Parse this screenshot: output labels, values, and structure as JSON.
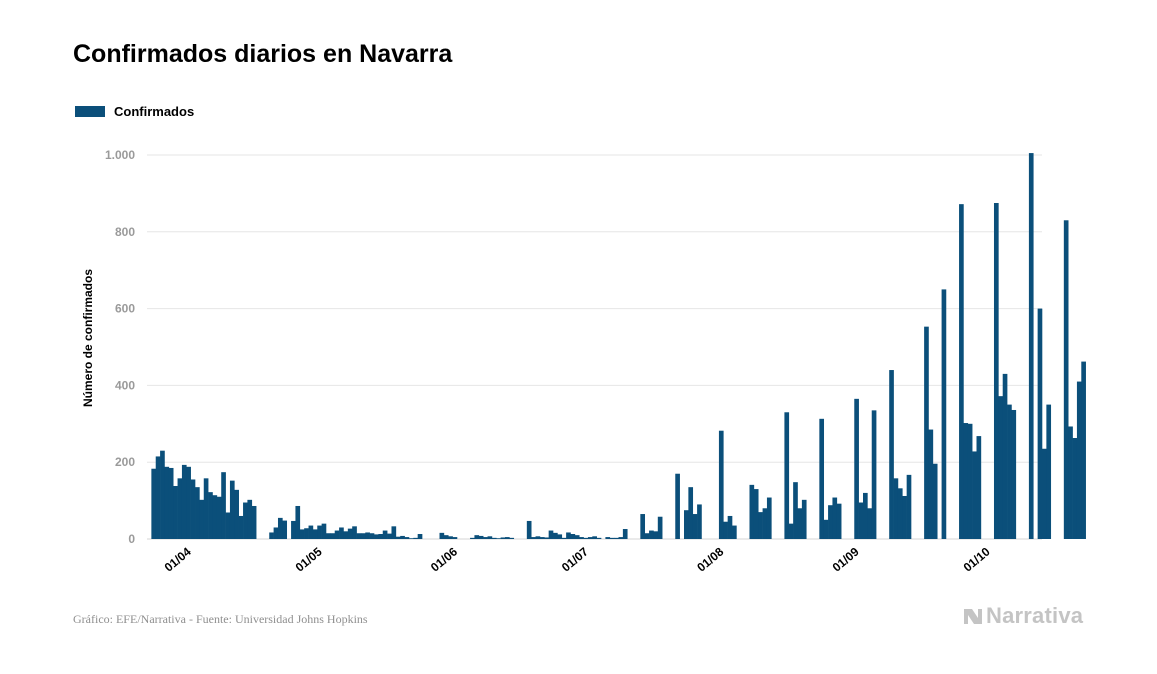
{
  "title": "Confirmados diarios en Navarra",
  "legend": {
    "label": "Confirmados",
    "color": "#0b4f7a"
  },
  "footer": {
    "source": "Gráfico: EFE/Narrativa - Fuente: Universidad Johns Hopkins",
    "brand": "Narrativa"
  },
  "colors": {
    "bar": "#0b4f7a",
    "grid": "#e6e6e6",
    "tick_label": "#9a9a9a",
    "brand": "#c4c4c4"
  },
  "chart_data": {
    "type": "bar",
    "ylabel": "Número de confirmados",
    "ylim": [
      0,
      1000
    ],
    "yticks": [
      0,
      200,
      400,
      600,
      800,
      1000
    ],
    "ytick_labels": [
      "0",
      "200",
      "400",
      "600",
      "800",
      "1.000"
    ],
    "xlim": [
      "2020-03-25",
      "2020-10-16"
    ],
    "xtick_labels": [
      "01/04",
      "01/05",
      "01/06",
      "01/07",
      "01/08",
      "01/09",
      "01/10"
    ],
    "xtick_dates": [
      "2020-04-01",
      "2020-05-01",
      "2020-06-01",
      "2020-07-01",
      "2020-08-01",
      "2020-09-01",
      "2020-10-01"
    ],
    "grid": true,
    "series": [
      {
        "name": "Confirmados",
        "start_date": "2020-03-26",
        "values": [
          183,
          215,
          230,
          188,
          185,
          138,
          158,
          193,
          188,
          155,
          135,
          102,
          158,
          122,
          114,
          110,
          174,
          69,
          152,
          128,
          60,
          95,
          102,
          86,
          0,
          0,
          0,
          17,
          30,
          55,
          48,
          0,
          47,
          86,
          25,
          28,
          35,
          25,
          35,
          40,
          15,
          15,
          22,
          30,
          20,
          27,
          33,
          15,
          15,
          17,
          15,
          12,
          13,
          22,
          14,
          33,
          6,
          8,
          5,
          2,
          3,
          13,
          0,
          0,
          0,
          0,
          16,
          10,
          7,
          5,
          0,
          0,
          0,
          3,
          10,
          8,
          5,
          7,
          3,
          2,
          4,
          5,
          3,
          0,
          0,
          0,
          47,
          5,
          7,
          5,
          4,
          22,
          16,
          12,
          3,
          17,
          13,
          10,
          5,
          3,
          5,
          7,
          3,
          0,
          5,
          3,
          3,
          5,
          26,
          0,
          0,
          0,
          65,
          15,
          22,
          20,
          58,
          0,
          0,
          0,
          170,
          0,
          75,
          135,
          65,
          90,
          0,
          0,
          0,
          0,
          282,
          45,
          60,
          35,
          0,
          0,
          0,
          141,
          130,
          70,
          80,
          108,
          0,
          0,
          0,
          330,
          40,
          148,
          80,
          102,
          0,
          0,
          0,
          313,
          50,
          88,
          108,
          92,
          0,
          0,
          0,
          365,
          95,
          120,
          80,
          335,
          0,
          0,
          0,
          440,
          158,
          132,
          112,
          167,
          0,
          0,
          0,
          553,
          285,
          196,
          0,
          650,
          0,
          0,
          0,
          872,
          302,
          300,
          228,
          268,
          0,
          0,
          0,
          875,
          372,
          430,
          350,
          336,
          0,
          0,
          0,
          1005,
          0,
          600,
          235,
          350,
          0,
          0,
          0,
          830,
          293,
          263,
          410,
          462
        ]
      }
    ]
  }
}
